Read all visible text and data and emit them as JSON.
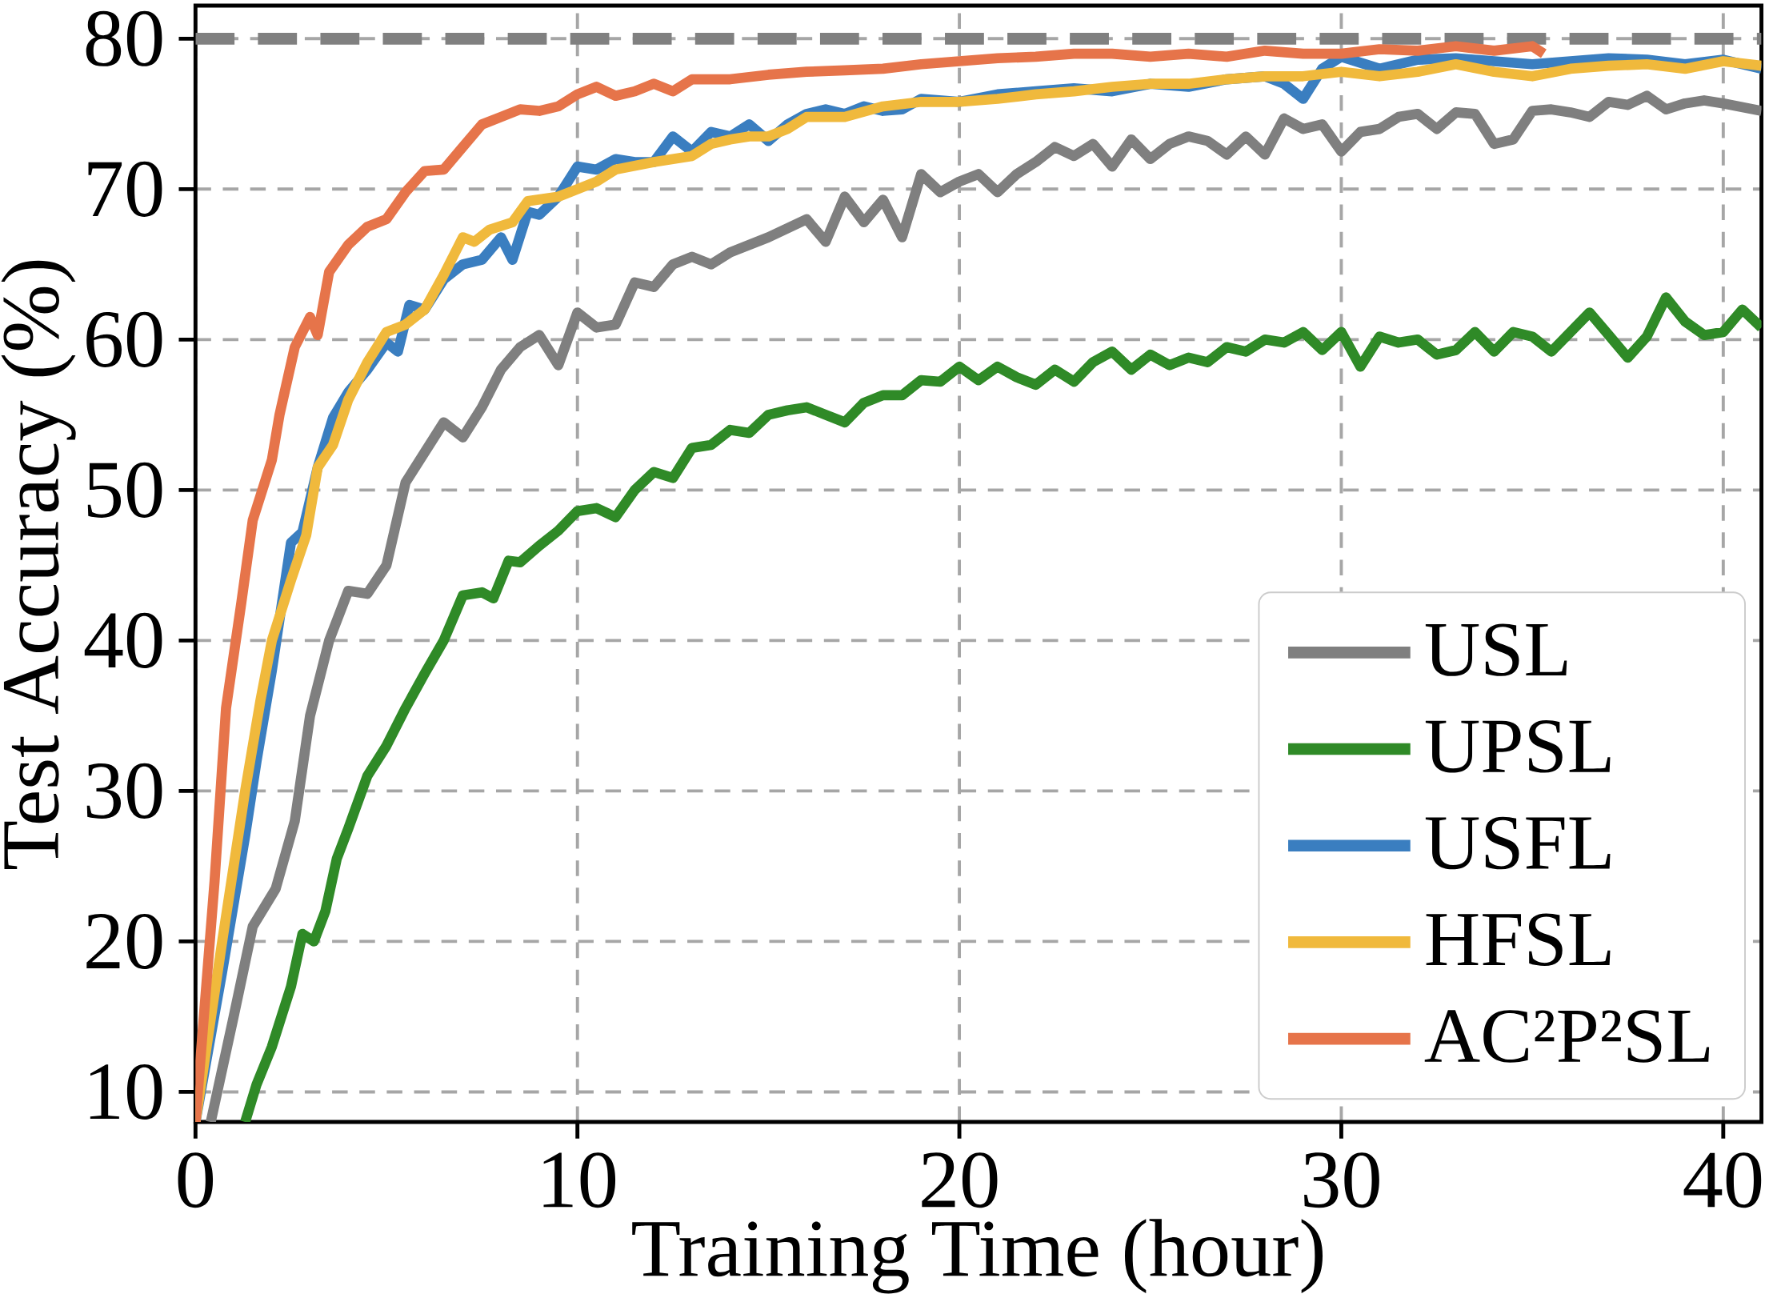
{
  "chart_data": {
    "type": "line",
    "xlabel": "Training Time (hour)",
    "ylabel": "Test Accuracy (%)",
    "xlim": [
      0,
      41
    ],
    "ylim": [
      8,
      82.2
    ],
    "xticks": [
      0,
      10,
      20,
      30,
      40
    ],
    "yticks": [
      10,
      20,
      30,
      40,
      50,
      60,
      70,
      80
    ],
    "grid": true,
    "legend": "bottom right",
    "line_style": "solid",
    "marker": "none",
    "ref_lines": [
      {
        "axis": "y",
        "value": 80,
        "color": "#808080",
        "line_style": "dashed"
      }
    ],
    "series": [
      {
        "name": "USL",
        "color": "#7f7f7f",
        "x": [
          0.4,
          1,
          1.5,
          2.1,
          2.6,
          3,
          3.5,
          4,
          4.5,
          5,
          5.5,
          6,
          6.5,
          7,
          7.5,
          8,
          8.5,
          9,
          9.5,
          10,
          10.5,
          11,
          11.5,
          12,
          12.5,
          13,
          13.5,
          14,
          15,
          16,
          16.5,
          17,
          17.5,
          18,
          18.5,
          19,
          19.5,
          20,
          20.5,
          21,
          21.5,
          22,
          22.5,
          23,
          23.5,
          24,
          24.5,
          25,
          25.5,
          26,
          26.5,
          27,
          27.5,
          28,
          28.5,
          29,
          29.5,
          30,
          30.5,
          31,
          31.5,
          32,
          32.5,
          33,
          33.5,
          34,
          34.5,
          35,
          35.5,
          36,
          36.5,
          37,
          37.5,
          38,
          38.5,
          39,
          39.5,
          40,
          41
        ],
        "values": [
          8,
          15,
          21,
          23.5,
          28,
          35,
          40,
          43.3,
          43.1,
          45,
          50.5,
          52.5,
          54.5,
          53.5,
          55.5,
          58,
          59.5,
          60.3,
          58.3,
          61.8,
          60.8,
          61,
          63.8,
          63.5,
          65,
          65.5,
          65,
          65.8,
          66.8,
          68,
          66.5,
          69.5,
          67.8,
          69.3,
          66.8,
          71,
          69.8,
          70.5,
          71,
          69.8,
          71,
          71.8,
          72.8,
          72.2,
          73,
          71.5,
          73.3,
          72,
          73,
          73.5,
          73.2,
          72.3,
          73.5,
          72.3,
          74.7,
          74,
          74.3,
          72.5,
          73.8,
          74,
          74.8,
          75,
          74,
          75.1,
          75,
          73,
          73.3,
          75.2,
          75.3,
          75.1,
          74.8,
          75.8,
          75.6,
          76.2,
          75.3,
          75.7,
          75.9,
          75.7,
          75.2
        ]
      },
      {
        "name": "UPSL",
        "color": "#2f8a27",
        "x": [
          1.3,
          1.6,
          2,
          2.5,
          2.8,
          3.1,
          3.4,
          3.7,
          4,
          4.5,
          5,
          5.5,
          6,
          6.5,
          7,
          7.5,
          7.8,
          8.2,
          8.5,
          9,
          9.5,
          10,
          10.5,
          11,
          11.5,
          12,
          12.5,
          13,
          13.5,
          14,
          14.5,
          15,
          15.5,
          16,
          16.5,
          17,
          17.5,
          18,
          18.5,
          19,
          19.5,
          20,
          20.5,
          21,
          21.5,
          22,
          22.5,
          23,
          23.5,
          24,
          24.5,
          25,
          25.5,
          26,
          26.5,
          27,
          27.5,
          28,
          28.5,
          29,
          29.5,
          30,
          30.5,
          31,
          31.5,
          32,
          32.5,
          33,
          33.5,
          34,
          34.5,
          35,
          35.5,
          36,
          36.5,
          37,
          37.5,
          38,
          38.5,
          39,
          39.5,
          40,
          40.5,
          41
        ],
        "values": [
          8,
          10.5,
          13,
          17,
          20.5,
          20,
          22,
          25.5,
          27.5,
          31,
          33,
          35.5,
          37.8,
          40,
          43,
          43.2,
          42.8,
          45.3,
          45.2,
          46.3,
          47.3,
          48.6,
          48.8,
          48.2,
          50,
          51.2,
          50.8,
          52.8,
          53,
          54,
          53.8,
          55,
          55.3,
          55.5,
          55,
          54.5,
          55.8,
          56.3,
          56.3,
          57.3,
          57.2,
          58.2,
          57.3,
          58.2,
          57.5,
          57,
          58,
          57.2,
          58.5,
          59.2,
          58,
          59,
          58.3,
          58.8,
          58.5,
          59.5,
          59.2,
          60,
          59.8,
          60.5,
          59.3,
          60.5,
          58.2,
          60.2,
          59.8,
          60,
          59,
          59.3,
          60.5,
          59.2,
          60.5,
          60.2,
          59.2,
          60.5,
          61.8,
          60.3,
          58.8,
          60.2,
          62.8,
          61.2,
          60.3,
          60.5,
          62,
          60.8
        ]
      },
      {
        "name": "USFL",
        "color": "#3a7ec0",
        "x": [
          0,
          0.7,
          1.3,
          1.6,
          2,
          2.5,
          2.8,
          3.2,
          3.6,
          4,
          4.5,
          5,
          5.3,
          5.6,
          6,
          6.5,
          7,
          7.5,
          8,
          8.3,
          8.7,
          9,
          9.5,
          10,
          10.5,
          11,
          11.5,
          12,
          12.5,
          13,
          13.5,
          14,
          14.5,
          15,
          15.5,
          16,
          16.5,
          17,
          17.5,
          18,
          18.5,
          19,
          20,
          21,
          22,
          23,
          24,
          25,
          26,
          27,
          28,
          28.5,
          29,
          29.5,
          30,
          31,
          32,
          33,
          34,
          35,
          36,
          37,
          38,
          39,
          40,
          41
        ],
        "values": [
          8,
          18,
          27,
          32,
          38,
          46.5,
          47.2,
          51.5,
          54.8,
          56.5,
          58,
          59.8,
          59.2,
          62.3,
          62,
          64,
          65,
          65.3,
          66.8,
          65.3,
          68.5,
          68.3,
          69.5,
          71.5,
          71.3,
          72,
          71.8,
          71.8,
          73.5,
          72.5,
          73.8,
          73.5,
          74.3,
          73.2,
          74.3,
          75,
          75.3,
          75,
          75.5,
          75.2,
          75.3,
          76,
          75.8,
          76.3,
          76.5,
          76.7,
          76.5,
          77,
          76.8,
          77.3,
          77.5,
          77,
          76,
          78,
          78.8,
          78,
          78.6,
          78.7,
          78.5,
          78.3,
          78.5,
          78.7,
          78.6,
          78.3,
          78.6,
          78
        ]
      },
      {
        "name": "HFSL",
        "color": "#f0b93c",
        "x": [
          0,
          0.7,
          1.3,
          1.7,
          2,
          2.5,
          2.9,
          3.2,
          3.6,
          4,
          4.5,
          5,
          5.5,
          6,
          6.5,
          7,
          7.3,
          7.7,
          8.3,
          8.7,
          9.5,
          10,
          10.5,
          11,
          12,
          13,
          13.5,
          14,
          14.5,
          15,
          15.5,
          16,
          17,
          18,
          19,
          20,
          21,
          22,
          23,
          24,
          25,
          26,
          27,
          28,
          29,
          30,
          31,
          32,
          33,
          34,
          35,
          36,
          37,
          38,
          39,
          40,
          41
        ],
        "values": [
          8,
          20,
          30,
          36,
          40,
          44,
          47,
          51.5,
          53,
          56,
          58.5,
          60.5,
          61,
          62,
          64.3,
          66.8,
          66.5,
          67.3,
          67.8,
          69.2,
          69.5,
          70,
          70.5,
          71.3,
          71.8,
          72.2,
          73,
          73.3,
          73.5,
          73.5,
          74,
          74.8,
          74.8,
          75.5,
          75.8,
          75.8,
          76,
          76.3,
          76.5,
          76.8,
          77,
          77,
          77.3,
          77.5,
          77.5,
          77.8,
          77.5,
          77.8,
          78.3,
          77.8,
          77.5,
          78,
          78.2,
          78.3,
          78,
          78.5,
          78.2
        ]
      },
      {
        "name": "AC²P²SL",
        "color": "#e6744a",
        "x": [
          0,
          0.5,
          0.8,
          1.2,
          1.5,
          2,
          2.2,
          2.6,
          3,
          3.2,
          3.5,
          4,
          4.5,
          5,
          5.5,
          6,
          6.5,
          7,
          7.5,
          8,
          8.5,
          9,
          9.5,
          10,
          10.5,
          11,
          11.5,
          12,
          12.5,
          13,
          14,
          15,
          16,
          17,
          18,
          19,
          20,
          21,
          22,
          23,
          24,
          25,
          26,
          27,
          28,
          29,
          30,
          31,
          32,
          33,
          34,
          35,
          35.3
        ],
        "values": [
          8,
          24,
          35.5,
          42.5,
          48,
          52,
          55,
          59.5,
          61.5,
          60.3,
          64.5,
          66.3,
          67.5,
          68,
          69.8,
          71.2,
          71.3,
          72.8,
          74.3,
          74.8,
          75.3,
          75.2,
          75.5,
          76.3,
          76.8,
          76.2,
          76.5,
          77,
          76.5,
          77.3,
          77.3,
          77.6,
          77.8,
          77.9,
          78,
          78.3,
          78.5,
          78.7,
          78.8,
          79,
          79,
          78.8,
          79,
          78.8,
          79.2,
          79,
          79,
          79.3,
          79.2,
          79.5,
          79.2,
          79.5,
          79
        ]
      }
    ]
  }
}
